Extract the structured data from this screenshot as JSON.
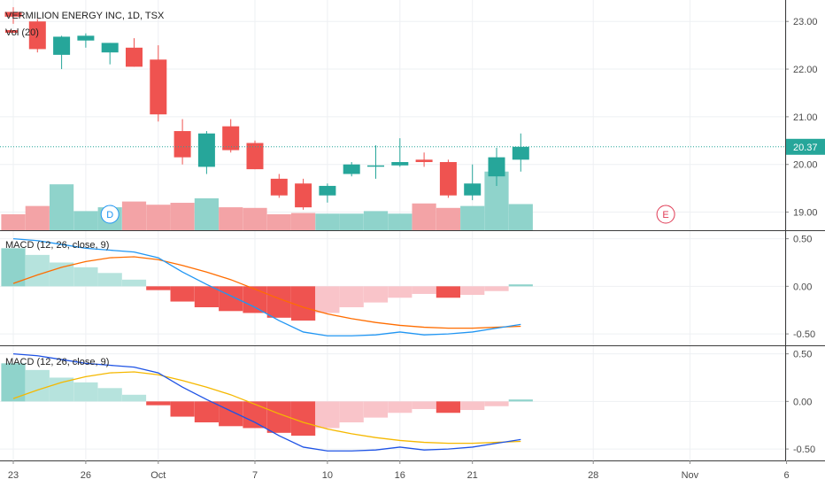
{
  "chart_data": {
    "type": "candlestick",
    "title": "VERMILION ENERGY INC, 1D, TSX",
    "volume_label": "Vol (20)",
    "last_price": 20.37,
    "last_price_label": "20.37",
    "price_axis": {
      "ticks": [
        23.0,
        22.0,
        21.0,
        20.0,
        19.0
      ],
      "tick_labels": [
        "23.00",
        "22.00",
        "21.00",
        "20.00",
        "19.00"
      ],
      "ylim": [
        18.62,
        23.45
      ]
    },
    "x_tick_labels": [
      "23",
      "26",
      "Oct",
      "7",
      "10",
      "16",
      "21",
      "28",
      "Nov",
      "6"
    ],
    "x_tick_index": [
      0,
      3,
      6,
      10,
      13,
      16,
      19,
      24,
      28,
      32
    ],
    "candles": [
      {
        "o": 23.2,
        "h": 23.3,
        "l": 22.95,
        "c": 23.1
      },
      {
        "o": 23.0,
        "h": 23.05,
        "l": 22.35,
        "c": 22.42
      },
      {
        "o": 22.3,
        "h": 22.7,
        "l": 22.0,
        "c": 22.68
      },
      {
        "o": 22.6,
        "h": 22.75,
        "l": 22.45,
        "c": 22.7
      },
      {
        "o": 22.35,
        "h": 22.55,
        "l": 22.1,
        "c": 22.55
      },
      {
        "o": 22.45,
        "h": 22.65,
        "l": 22.05,
        "c": 22.05
      },
      {
        "o": 22.2,
        "h": 22.5,
        "l": 20.9,
        "c": 21.05
      },
      {
        "o": 20.7,
        "h": 20.95,
        "l": 20.0,
        "c": 20.15
      },
      {
        "o": 19.95,
        "h": 20.7,
        "l": 19.8,
        "c": 20.65
      },
      {
        "o": 20.8,
        "h": 20.95,
        "l": 20.25,
        "c": 20.3
      },
      {
        "o": 20.45,
        "h": 20.5,
        "l": 19.9,
        "c": 19.9
      },
      {
        "o": 19.7,
        "h": 19.8,
        "l": 19.3,
        "c": 19.35
      },
      {
        "o": 19.6,
        "h": 19.7,
        "l": 19.05,
        "c": 19.1
      },
      {
        "o": 19.35,
        "h": 19.6,
        "l": 19.2,
        "c": 19.55
      },
      {
        "o": 19.8,
        "h": 20.05,
        "l": 19.75,
        "c": 20.0
      },
      {
        "o": 19.98,
        "h": 20.4,
        "l": 19.7,
        "c": 19.98
      },
      {
        "o": 19.98,
        "h": 20.55,
        "l": 19.95,
        "c": 20.05
      },
      {
        "o": 20.1,
        "h": 20.25,
        "l": 19.95,
        "c": 20.05
      },
      {
        "o": 20.05,
        "h": 20.1,
        "l": 19.3,
        "c": 19.35
      },
      {
        "o": 19.35,
        "h": 20.0,
        "l": 19.25,
        "c": 19.6
      },
      {
        "o": 19.75,
        "h": 20.35,
        "l": 19.55,
        "c": 20.15
      },
      {
        "o": 20.1,
        "h": 20.65,
        "l": 19.85,
        "c": 20.37
      }
    ],
    "volume": [
      0.25,
      0.38,
      0.72,
      0.3,
      0.36,
      0.45,
      0.4,
      0.43,
      0.5,
      0.36,
      0.35,
      0.25,
      0.27,
      0.26,
      0.26,
      0.3,
      0.26,
      0.42,
      0.35,
      0.38,
      0.92,
      0.41
    ],
    "events": [
      {
        "letter": "D",
        "index": 4,
        "color": "#2196f3"
      },
      {
        "letter": "E",
        "index": 27,
        "color": "#e03a54"
      }
    ],
    "macd_panels": [
      {
        "label": "MACD (12, 26, close, 9)",
        "y_ticks": [
          0.5,
          0.0,
          -0.5
        ],
        "y_tick_labels": [
          "0.50",
          "0.00",
          "-0.50"
        ],
        "ylim": [
          -0.62,
          0.58
        ],
        "histogram": [
          0.4,
          0.33,
          0.25,
          0.2,
          0.14,
          0.07,
          -0.04,
          -0.16,
          -0.22,
          -0.26,
          -0.28,
          -0.33,
          -0.36,
          -0.28,
          -0.22,
          -0.17,
          -0.12,
          -0.08,
          -0.12,
          -0.09,
          -0.05,
          0.02
        ],
        "macd_line": [
          0.5,
          0.48,
          0.44,
          0.4,
          0.38,
          0.36,
          0.3,
          0.15,
          0.02,
          -0.1,
          -0.22,
          -0.36,
          -0.48,
          -0.52,
          -0.52,
          -0.51,
          -0.48,
          -0.51,
          -0.5,
          -0.48,
          -0.44,
          -0.4
        ],
        "signal_line": [
          0.03,
          0.12,
          0.2,
          0.26,
          0.3,
          0.31,
          0.28,
          0.22,
          0.15,
          0.07,
          -0.03,
          -0.13,
          -0.22,
          -0.29,
          -0.34,
          -0.38,
          -0.41,
          -0.43,
          -0.44,
          -0.44,
          -0.43,
          -0.42
        ],
        "macd_color": "#2196f3",
        "signal_color": "#ff6d00"
      },
      {
        "label": "MACD (12, 26, close, 9)",
        "y_ticks": [
          0.5,
          0.0,
          -0.5
        ],
        "y_tick_labels": [
          "0.50",
          "0.00",
          "-0.50"
        ],
        "ylim": [
          -0.62,
          0.58
        ],
        "histogram": [
          0.4,
          0.33,
          0.25,
          0.2,
          0.14,
          0.07,
          -0.04,
          -0.16,
          -0.22,
          -0.26,
          -0.28,
          -0.33,
          -0.36,
          -0.28,
          -0.22,
          -0.17,
          -0.12,
          -0.08,
          -0.12,
          -0.09,
          -0.05,
          0.02
        ],
        "macd_line": [
          0.5,
          0.48,
          0.44,
          0.4,
          0.38,
          0.36,
          0.3,
          0.15,
          0.02,
          -0.1,
          -0.22,
          -0.36,
          -0.48,
          -0.52,
          -0.52,
          -0.51,
          -0.48,
          -0.51,
          -0.5,
          -0.48,
          -0.44,
          -0.4
        ],
        "signal_line": [
          0.03,
          0.12,
          0.2,
          0.26,
          0.3,
          0.31,
          0.28,
          0.22,
          0.15,
          0.07,
          -0.03,
          -0.13,
          -0.22,
          -0.29,
          -0.34,
          -0.38,
          -0.41,
          -0.43,
          -0.44,
          -0.44,
          -0.43,
          -0.42
        ],
        "macd_color": "#1e53e5",
        "signal_color": "#f5b800"
      }
    ],
    "colors": {
      "up": "#26a69a",
      "down": "#ef5350",
      "vol_up": "#8fd3cb",
      "vol_down": "#f3a3a6",
      "hist_pos_strong": "#8fd3cb",
      "hist_pos_weak": "#b6e3dd",
      "hist_neg_strong": "#ef5350",
      "hist_neg_weak": "#f9c4c9",
      "grid": "#eef0f3",
      "last_price_bg": "#26a69a"
    }
  }
}
